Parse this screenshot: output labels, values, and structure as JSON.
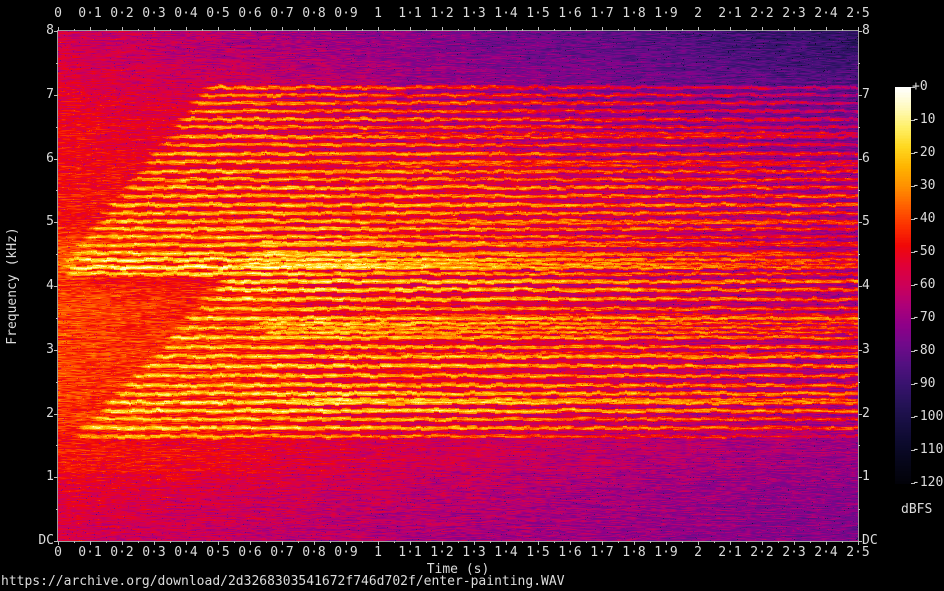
{
  "page": {
    "source_caption": "https://archive.org/download/2d3268303541672f746d702f/enter-painting.WAV"
  },
  "chart_data": {
    "type": "heatmap",
    "subtype": "audio-spectrogram",
    "title": "",
    "xlabel": "Time (s)",
    "ylabel": "Frequency (kHz)",
    "x_range_s": [
      0,
      2.5
    ],
    "x_tick_step_s": 0.1,
    "y_range_khz": [
      0,
      8
    ],
    "y_tick_step_khz": 1,
    "grid": false,
    "x_tick_labels": [
      "0",
      "0·1",
      "0·2",
      "0·3",
      "0·4",
      "0·5",
      "0·6",
      "0·7",
      "0·8",
      "0·9",
      "1",
      "1·1",
      "1·2",
      "1·3",
      "1·4",
      "1·5",
      "1·6",
      "1·7",
      "1·8",
      "1·9",
      "2",
      "2·1",
      "2·2",
      "2·3",
      "2·4",
      "2·5"
    ],
    "y_tick_labels": [
      "8",
      "7",
      "6",
      "5",
      "4",
      "3",
      "2",
      "1",
      "DC"
    ],
    "colorbar": {
      "label": "dBFS",
      "max_db": 0,
      "min_db": -120,
      "tick_labels": [
        "+0",
        "-10",
        "-20",
        "-30",
        "-40",
        "-50",
        "-60",
        "-70",
        "-80",
        "-90",
        "-100",
        "-110",
        "-120"
      ]
    },
    "palette_stops": [
      [
        0,
        "#ffffff"
      ],
      [
        -6,
        "#fffac0"
      ],
      [
        -12,
        "#fff068"
      ],
      [
        -18,
        "#ffd820"
      ],
      [
        -24,
        "#ffb400"
      ],
      [
        -30,
        "#ff9000"
      ],
      [
        -36,
        "#ff6000"
      ],
      [
        -42,
        "#fc3000"
      ],
      [
        -48,
        "#f00808"
      ],
      [
        -54,
        "#e00038"
      ],
      [
        -60,
        "#cc0058"
      ],
      [
        -66,
        "#ae0078"
      ],
      [
        -72,
        "#8e0088"
      ],
      [
        -78,
        "#700a8a"
      ],
      [
        -84,
        "#521080"
      ],
      [
        -90,
        "#38126e"
      ],
      [
        -96,
        "#241256"
      ],
      [
        -102,
        "#160e40"
      ],
      [
        -108,
        "#0c0a2c"
      ],
      [
        -114,
        "#060618"
      ],
      [
        -120,
        "#020208"
      ]
    ],
    "noise_floor_points": [
      [
        0,
        -58,
        7
      ],
      [
        0.8,
        -53,
        8
      ],
      [
        1.4,
        -48,
        8.5
      ],
      [
        3,
        -46,
        8.5
      ],
      [
        5.5,
        -47,
        9
      ],
      [
        6.5,
        -50,
        11
      ],
      [
        7.5,
        -56,
        13
      ],
      [
        8,
        -58,
        14
      ]
    ],
    "body_blobs": [
      [
        1.55,
        4.15,
        0.0,
        0.8,
        6
      ],
      [
        4.1,
        5.05,
        0.0,
        0.7,
        4
      ],
      [
        0.9,
        1.6,
        0.0,
        0.7,
        3
      ],
      [
        4.5,
        6.2,
        0.9,
        1.6,
        3
      ],
      [
        2.0,
        4.0,
        0.9,
        1.8,
        3
      ],
      [
        4.0,
        4.8,
        0.0,
        0.12,
        6
      ]
    ],
    "partials": [
      [
        4.2,
        0.0,
        -16,
        0.55,
        16
      ],
      [
        4.3,
        0.0,
        -9,
        0.6,
        15
      ],
      [
        4.42,
        0.0,
        -12,
        0.6,
        15
      ],
      [
        4.52,
        0.02,
        -17,
        0.55,
        16
      ],
      [
        4.65,
        0.04,
        -19,
        0.62,
        16
      ],
      [
        4.78,
        0.06,
        -21,
        0.62,
        16
      ],
      [
        4.9,
        0.08,
        -19,
        0.6,
        14
      ],
      [
        5.02,
        0.1,
        -21,
        0.6,
        12
      ],
      [
        5.15,
        0.12,
        -22,
        0.6,
        10
      ],
      [
        5.28,
        0.14,
        -20,
        0.6,
        9
      ],
      [
        5.42,
        0.17,
        -23,
        0.58,
        9
      ],
      [
        5.55,
        0.19,
        -21,
        0.58,
        10
      ],
      [
        5.68,
        0.21,
        -24,
        0.56,
        11
      ],
      [
        5.8,
        0.23,
        -22,
        0.56,
        12
      ],
      [
        5.95,
        0.25,
        -25,
        0.55,
        13
      ],
      [
        6.08,
        0.27,
        -23,
        0.55,
        13
      ],
      [
        6.22,
        0.3,
        -26,
        0.54,
        14
      ],
      [
        6.35,
        0.32,
        -24,
        0.54,
        14
      ],
      [
        6.5,
        0.34,
        -27,
        0.53,
        15
      ],
      [
        6.62,
        0.36,
        -25,
        0.53,
        15
      ],
      [
        6.75,
        0.38,
        -28,
        0.52,
        16
      ],
      [
        6.88,
        0.4,
        -26,
        0.52,
        16
      ],
      [
        7.0,
        0.42,
        -29,
        0.52,
        17
      ],
      [
        7.12,
        0.44,
        -28,
        0.5,
        17
      ],
      [
        1.65,
        0.03,
        -23,
        0.45,
        15
      ],
      [
        1.78,
        0.05,
        -16,
        0.5,
        13
      ],
      [
        1.92,
        0.08,
        -19,
        0.55,
        13
      ],
      [
        2.05,
        0.11,
        -14,
        0.8,
        12
      ],
      [
        2.18,
        0.13,
        -13,
        0.82,
        12
      ],
      [
        2.32,
        0.16,
        -15,
        0.8,
        12
      ],
      [
        2.45,
        0.18,
        -17,
        0.7,
        12
      ],
      [
        2.6,
        0.21,
        -18,
        0.65,
        11
      ],
      [
        2.75,
        0.24,
        -15,
        0.68,
        10
      ],
      [
        2.9,
        0.27,
        -17,
        0.66,
        9
      ],
      [
        3.05,
        0.3,
        -19,
        0.64,
        11
      ],
      [
        3.2,
        0.32,
        -17,
        0.64,
        11
      ],
      [
        3.35,
        0.35,
        -19,
        0.62,
        12
      ],
      [
        3.5,
        0.38,
        -16,
        0.65,
        9
      ],
      [
        3.65,
        0.41,
        -19,
        0.62,
        12
      ],
      [
        3.8,
        0.43,
        -16,
        0.64,
        11
      ],
      [
        3.95,
        0.46,
        -14,
        0.68,
        12
      ],
      [
        4.08,
        0.49,
        -13,
        0.7,
        12
      ],
      [
        4.35,
        0.55,
        -13,
        0.75,
        17
      ],
      [
        4.5,
        0.57,
        -16,
        0.78,
        17
      ],
      [
        4.68,
        0.6,
        -18,
        0.8,
        18
      ],
      [
        3.42,
        0.6,
        -18,
        0.88,
        15
      ],
      [
        3.28,
        0.63,
        -20,
        0.9,
        15
      ],
      [
        2.22,
        0.7,
        -17,
        0.92,
        14
      ],
      [
        5.0,
        1.05,
        -32,
        1.45,
        8
      ],
      [
        5.9,
        0.9,
        -42,
        1.6,
        8
      ],
      [
        6.4,
        0.8,
        -44,
        1.5,
        8
      ],
      [
        2.95,
        0.8,
        -40,
        1.4,
        6
      ],
      [
        3.55,
        0.9,
        -42,
        1.5,
        6
      ]
    ]
  }
}
